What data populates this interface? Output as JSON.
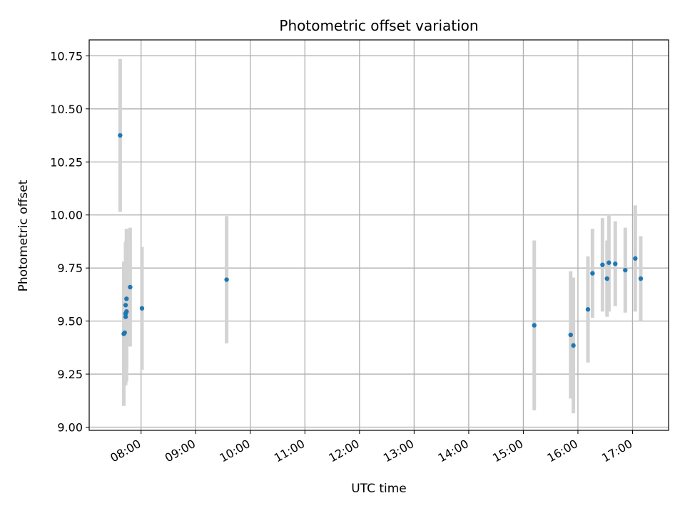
{
  "chart_data": {
    "type": "scatter",
    "title": "Photometric offset variation",
    "xlabel": "UTC time",
    "ylabel": "Photometric offset",
    "x_tick_labels": [
      "08:00",
      "09:00",
      "10:00",
      "11:00",
      "12:00",
      "13:00",
      "14:00",
      "15:00",
      "16:00",
      "17:00"
    ],
    "x_ticks_hours": [
      8,
      9,
      10,
      11,
      12,
      13,
      14,
      15,
      16,
      17
    ],
    "y_ticks": [
      9.0,
      9.25,
      9.5,
      9.75,
      10.0,
      10.25,
      10.5,
      10.75
    ],
    "y_tick_labels": [
      "9.00",
      "9.25",
      "9.50",
      "9.75",
      "10.00",
      "10.25",
      "10.50",
      "10.75"
    ],
    "xlim_hours": [
      7.05,
      17.66
    ],
    "ylim": [
      8.985,
      10.825
    ],
    "grid": true,
    "point_color": "#1f77b4",
    "errorbar_color": "#d3d3d3",
    "points": [
      {
        "t": "07:37",
        "y": 10.375,
        "err": 0.36
      },
      {
        "t": "07:41",
        "y": 9.44,
        "err": 0.34
      },
      {
        "t": "07:42",
        "y": 9.445,
        "err": 0.25
      },
      {
        "t": "07:43",
        "y": 9.52,
        "err": 0.32
      },
      {
        "t": "07:43",
        "y": 9.535,
        "err": 0.33
      },
      {
        "t": "07:43",
        "y": 9.575,
        "err": 0.3
      },
      {
        "t": "07:44",
        "y": 9.545,
        "err": 0.33
      },
      {
        "t": "07:44",
        "y": 9.605,
        "err": 0.33
      },
      {
        "t": "07:48",
        "y": 9.66,
        "err": 0.28
      },
      {
        "t": "08:01",
        "y": 9.56,
        "err": 0.29
      },
      {
        "t": "09:34",
        "y": 9.695,
        "err": 0.3
      },
      {
        "t": "15:12",
        "y": 9.48,
        "err": 0.4
      },
      {
        "t": "15:52",
        "y": 9.435,
        "err": 0.3
      },
      {
        "t": "15:55",
        "y": 9.385,
        "err": 0.32
      },
      {
        "t": "16:11",
        "y": 9.555,
        "err": 0.25
      },
      {
        "t": "16:16",
        "y": 9.725,
        "err": 0.21
      },
      {
        "t": "16:27",
        "y": 9.765,
        "err": 0.22
      },
      {
        "t": "16:32",
        "y": 9.7,
        "err": 0.18
      },
      {
        "t": "16:34",
        "y": 9.775,
        "err": 0.23
      },
      {
        "t": "16:41",
        "y": 9.77,
        "err": 0.2
      },
      {
        "t": "16:52",
        "y": 9.74,
        "err": 0.2
      },
      {
        "t": "17:03",
        "y": 9.795,
        "err": 0.25
      },
      {
        "t": "17:09",
        "y": 9.7,
        "err": 0.2
      }
    ]
  }
}
